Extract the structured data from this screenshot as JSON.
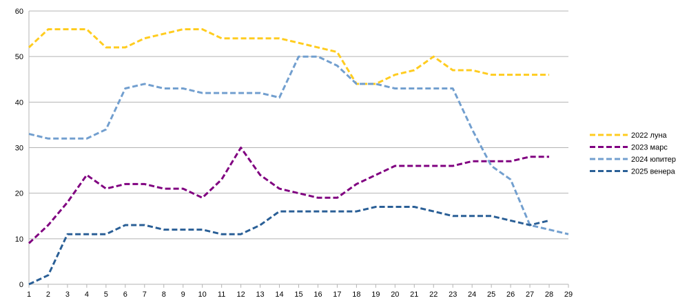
{
  "chart_data": {
    "type": "line",
    "title": "",
    "xlabel": "",
    "ylabel": "",
    "x": [
      1,
      2,
      3,
      4,
      5,
      6,
      7,
      8,
      9,
      10,
      11,
      12,
      13,
      14,
      15,
      16,
      17,
      18,
      19,
      20,
      21,
      22,
      23,
      24,
      25,
      26,
      27,
      28,
      29
    ],
    "xlim": [
      1,
      29
    ],
    "ylim": [
      0,
      60
    ],
    "yticks": [
      0,
      10,
      20,
      30,
      40,
      50,
      60
    ],
    "grid": "horizontal",
    "legend_position": "right",
    "line_style": "dashed",
    "series": [
      {
        "name": "2022 луна",
        "color": "#FFCC1F",
        "values": [
          52,
          56,
          56,
          56,
          52,
          52,
          54,
          55,
          56,
          56,
          54,
          54,
          54,
          54,
          53,
          52,
          51,
          44,
          44,
          46,
          47,
          50,
          47,
          47,
          46,
          46,
          46,
          46,
          null
        ]
      },
      {
        "name": "2023 марс",
        "color": "#800080",
        "values": [
          9,
          13,
          18,
          24,
          21,
          22,
          22,
          21,
          21,
          19,
          23,
          30,
          24,
          21,
          20,
          19,
          19,
          22,
          24,
          26,
          26,
          26,
          26,
          27,
          27,
          27,
          28,
          28,
          null
        ]
      },
      {
        "name": "2024 юпитер",
        "color": "#729FCF",
        "values": [
          33,
          32,
          32,
          32,
          34,
          43,
          44,
          43,
          43,
          42,
          42,
          42,
          42,
          41,
          50,
          50,
          48,
          44,
          44,
          43,
          43,
          43,
          43,
          34,
          26,
          23,
          13,
          12,
          11
        ]
      },
      {
        "name": "2025 венера",
        "color": "#2A5F96",
        "values": [
          0,
          2,
          11,
          11,
          11,
          13,
          13,
          12,
          12,
          12,
          11,
          11,
          13,
          16,
          16,
          16,
          16,
          16,
          17,
          17,
          17,
          16,
          15,
          15,
          15,
          14,
          13,
          14,
          null
        ]
      }
    ]
  }
}
